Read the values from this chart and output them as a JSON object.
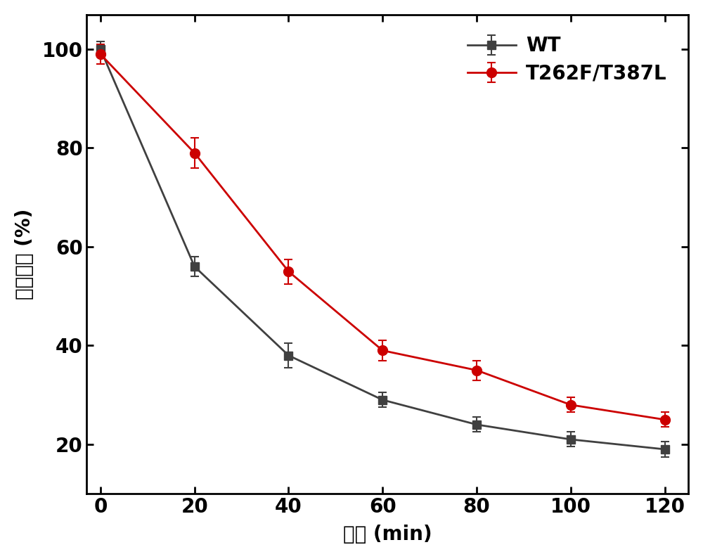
{
  "x": [
    0,
    20,
    40,
    60,
    80,
    100,
    120
  ],
  "wt_y": [
    100,
    56,
    38,
    29,
    24,
    21,
    19
  ],
  "wt_err": [
    1.5,
    2.0,
    2.5,
    1.5,
    1.5,
    1.5,
    1.5
  ],
  "mut_y": [
    99,
    79,
    55,
    39,
    35,
    28,
    25
  ],
  "mut_err": [
    2.0,
    3.0,
    2.5,
    2.0,
    2.0,
    1.5,
    1.5
  ],
  "wt_color": "#404040",
  "mut_color": "#cc0000",
  "wt_label": "WT",
  "mut_label": "T262F/T387L",
  "xlabel": "时间 (min)",
  "ylabel": "残余活力 (%)",
  "xlim": [
    -3,
    125
  ],
  "ylim": [
    10,
    107
  ],
  "xticks": [
    0,
    20,
    40,
    60,
    80,
    100,
    120
  ],
  "yticks": [
    20,
    40,
    60,
    80,
    100
  ],
  "background_color": "#ffffff",
  "figsize": [
    10.0,
    7.95
  ],
  "dpi": 100
}
